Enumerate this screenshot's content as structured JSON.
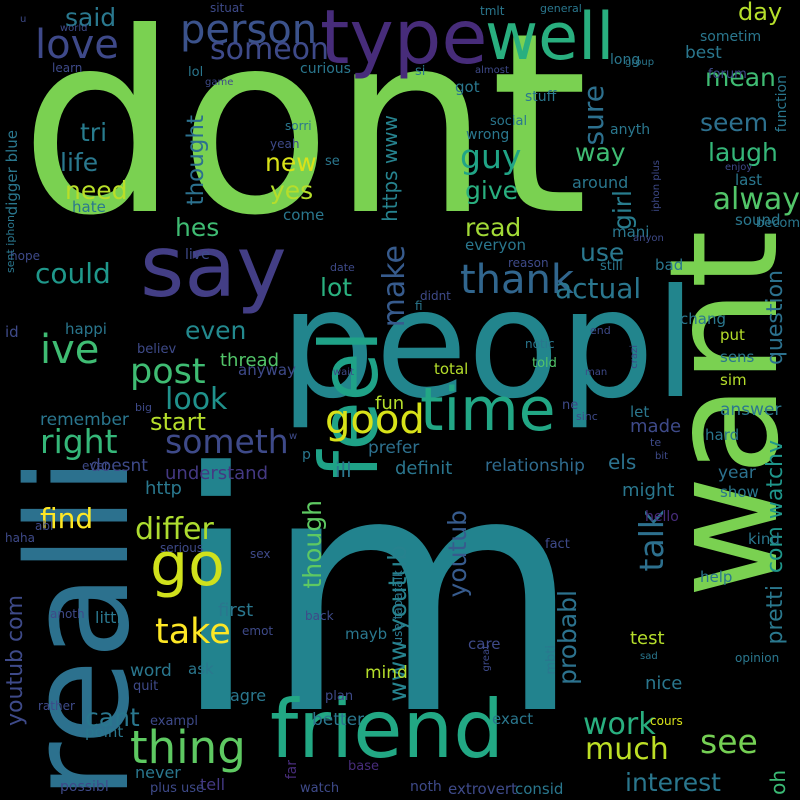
{
  "background": "#000000",
  "words": [
    {
      "text": "dont",
      "color": "#7ad151"
    },
    {
      "text": "im",
      "color": "#22838e"
    },
    {
      "text": "peopl",
      "color": "#22858d"
    },
    {
      "text": "want",
      "color": "#7ad151"
    },
    {
      "text": "realli",
      "color": "#2c718e"
    },
    {
      "text": "friend",
      "color": "#22a884"
    },
    {
      "text": "say",
      "color": "#433e85"
    },
    {
      "text": "feel",
      "color": "#1fa287"
    },
    {
      "text": "type",
      "color": "#472c7a"
    },
    {
      "text": "well",
      "color": "#29af7f"
    },
    {
      "text": "go",
      "color": "#d0e11c"
    },
    {
      "text": "time",
      "color": "#22a785"
    },
    {
      "text": "thing",
      "color": "#5ec962"
    },
    {
      "text": "person",
      "color": "#3b528b"
    },
    {
      "text": "thank",
      "color": "#31668e"
    },
    {
      "text": "love",
      "color": "#3e4989"
    },
    {
      "text": "ive",
      "color": "#3fbc73"
    },
    {
      "text": "post",
      "color": "#3fbc73"
    },
    {
      "text": "good",
      "color": "#d8e219"
    },
    {
      "text": "someth",
      "color": "#3e4a89"
    },
    {
      "text": "look",
      "color": "#20928c"
    },
    {
      "text": "right",
      "color": "#35b779"
    },
    {
      "text": "see",
      "color": "#75d054"
    },
    {
      "text": "much",
      "color": "#bddf26"
    },
    {
      "text": "actual",
      "color": "#2a768e"
    },
    {
      "text": "take",
      "color": "#fde725"
    },
    {
      "text": "make",
      "color": "#375b8d"
    },
    {
      "text": "work",
      "color": "#29af7f"
    },
    {
      "text": "guy",
      "color": "#20a486"
    },
    {
      "text": "differ",
      "color": "#addc30"
    },
    {
      "text": "find",
      "color": "#fde725"
    },
    {
      "text": "someon",
      "color": "#3e4a89"
    },
    {
      "text": "said",
      "color": "#2a788e"
    },
    {
      "text": "could",
      "color": "#1f988b"
    },
    {
      "text": "lot",
      "color": "#2ab07f"
    },
    {
      "text": "talk",
      "color": "#2d708e"
    },
    {
      "text": "interest",
      "color": "#2a778e"
    },
    {
      "text": "life",
      "color": "#2a788e"
    },
    {
      "text": "seem",
      "color": "#2d708e"
    },
    {
      "text": "laugh",
      "color": "#35b779"
    },
    {
      "text": "alway",
      "color": "#52c569"
    },
    {
      "text": "mean",
      "color": "#3fbc73"
    },
    {
      "text": "day",
      "color": "#b5de2b"
    },
    {
      "text": "way",
      "color": "#3fbc73"
    },
    {
      "text": "read",
      "color": "#a2da37"
    },
    {
      "text": "girl",
      "color": "#287d8e"
    },
    {
      "text": "give",
      "color": "#29af7f"
    },
    {
      "text": "use",
      "color": "#2a788e"
    },
    {
      "text": "need",
      "color": "#b8de29"
    },
    {
      "text": "new",
      "color": "#d8e219"
    },
    {
      "text": "yes",
      "color": "#b5de2b"
    },
    {
      "text": "hes",
      "color": "#3fbc73"
    },
    {
      "text": "tri",
      "color": "#287c8e"
    },
    {
      "text": "thought",
      "color": "#2c718e"
    },
    {
      "text": "sure",
      "color": "#2d708e"
    },
    {
      "text": "pretti",
      "color": "#2a788e"
    },
    {
      "text": "youtub",
      "color": "#375b8d"
    },
    {
      "text": "www youtub",
      "color": "#26828e"
    },
    {
      "text": "youtub com",
      "color": "#3e4a89"
    },
    {
      "text": "com watchv",
      "color": "#1f968b"
    },
    {
      "text": "even",
      "color": "#23898e"
    },
    {
      "text": "question",
      "color": "#2c718e"
    },
    {
      "text": "probabl",
      "color": "#2c728e"
    },
    {
      "text": "though",
      "color": "#5ec962"
    },
    {
      "text": "start",
      "color": "#b5de2b"
    },
    {
      "text": "cant",
      "color": "#2a778e"
    },
    {
      "text": "https www",
      "color": "#26828e"
    },
    {
      "text": "oh",
      "color": "#3bbb75"
    },
    {
      "text": "ill",
      "color": "#2a778e"
    },
    {
      "text": "definit",
      "color": "#2a768e"
    },
    {
      "text": "relationship",
      "color": "#2f6b8e"
    },
    {
      "text": "understand",
      "color": "#443983"
    },
    {
      "text": "thread",
      "color": "#52c569"
    },
    {
      "text": "remember",
      "color": "#2a768e"
    },
    {
      "text": "doesnt",
      "color": "#3e4a89"
    },
    {
      "text": "http",
      "color": "#2a788e"
    },
    {
      "text": "prefer",
      "color": "#2d708e"
    },
    {
      "text": "fun",
      "color": "#b5de2b"
    },
    {
      "text": "answer",
      "color": "#2a788e"
    },
    {
      "text": "made",
      "color": "#3e4a89"
    },
    {
      "text": "els",
      "color": "#2c728e"
    },
    {
      "text": "might",
      "color": "#2a778e"
    },
    {
      "text": "show",
      "color": "#2a778e"
    },
    {
      "text": "year",
      "color": "#2c718e"
    },
    {
      "text": "kind",
      "color": "#2a778e"
    },
    {
      "text": "test",
      "color": "#b5de2b"
    },
    {
      "text": "nice",
      "color": "#2a778e"
    },
    {
      "text": "better",
      "color": "#2a778e"
    },
    {
      "text": "mind",
      "color": "#b5de2b"
    },
    {
      "text": "mayb",
      "color": "#2a778e"
    },
    {
      "text": "word",
      "color": "#2a778e"
    },
    {
      "text": "first",
      "color": "#2a778e"
    },
    {
      "text": "littl",
      "color": "#2a778e"
    },
    {
      "text": "ask",
      "color": "#2a778e"
    },
    {
      "text": "agre",
      "color": "#2a778e"
    },
    {
      "text": "point",
      "color": "#2a778e"
    },
    {
      "text": "never",
      "color": "#2a778e"
    },
    {
      "text": "tell",
      "color": "#443983"
    },
    {
      "text": "happi",
      "color": "#2a778e"
    },
    {
      "text": "believ",
      "color": "#3e4a89"
    },
    {
      "text": "anyway",
      "color": "#3e4a89"
    },
    {
      "text": "total",
      "color": "#b5de2b"
    },
    {
      "text": "told",
      "color": "#52c569"
    },
    {
      "text": "sens",
      "color": "#2a778e"
    },
    {
      "text": "sim",
      "color": "#b5de2b"
    },
    {
      "text": "chang",
      "color": "#2a778e"
    },
    {
      "text": "put",
      "color": "#b5de2b"
    },
    {
      "text": "let",
      "color": "#2a778e"
    },
    {
      "text": "hard",
      "color": "#2a778e"
    },
    {
      "text": "help",
      "color": "#2a778e"
    },
    {
      "text": "opinion",
      "color": "#2a778e"
    },
    {
      "text": "cours",
      "color": "#d8e219"
    },
    {
      "text": "exact",
      "color": "#2a778e"
    },
    {
      "text": "consid",
      "color": "#2a778e"
    },
    {
      "text": "noth",
      "color": "#3e4a89"
    },
    {
      "text": "extrovert",
      "color": "#3e4a89"
    },
    {
      "text": "watch",
      "color": "#3e4a89"
    },
    {
      "text": "base",
      "color": "#472c7a"
    },
    {
      "text": "far",
      "color": "#472c7a"
    },
    {
      "text": "plus use",
      "color": "#3e4a89"
    },
    {
      "text": "possibl",
      "color": "#3e4a89"
    },
    {
      "text": "rather",
      "color": "#3e4a89"
    },
    {
      "text": "exampl",
      "color": "#3e4a89"
    },
    {
      "text": "quit",
      "color": "#3e4a89"
    },
    {
      "text": "care",
      "color": "#3e4a89"
    },
    {
      "text": "plan",
      "color": "#3e4a89"
    },
    {
      "text": "serious",
      "color": "#3e4a89"
    },
    {
      "text": "sex",
      "color": "#3e4a89"
    },
    {
      "text": "emot",
      "color": "#3e4a89"
    },
    {
      "text": "back",
      "color": "#3e4a89"
    },
    {
      "text": "fact",
      "color": "#3e4a89"
    },
    {
      "text": "hello",
      "color": "#472c7a"
    },
    {
      "text": "anoth",
      "color": "#3e4a89"
    },
    {
      "text": "abl",
      "color": "#3e4a89"
    },
    {
      "text": "ever",
      "color": "#3e4a89"
    },
    {
      "text": "haha",
      "color": "#3e4a89"
    },
    {
      "text": "big",
      "color": "#3e4a89"
    },
    {
      "text": "id",
      "color": "#3e4a89"
    },
    {
      "text": "hope",
      "color": "#3e4a89"
    },
    {
      "text": "live",
      "color": "#3e4a89"
    },
    {
      "text": "date",
      "color": "#3e4a89"
    },
    {
      "text": "didnt",
      "color": "#3e4a89"
    },
    {
      "text": "reason",
      "color": "#3e4a89"
    },
    {
      "text": "everyon",
      "color": "#2a778e"
    },
    {
      "text": "still",
      "color": "#2a778e"
    },
    {
      "text": "bad",
      "color": "#2a778e"
    },
    {
      "text": "mani",
      "color": "#2a778e"
    },
    {
      "text": "sound",
      "color": "#2a778e"
    },
    {
      "text": "becom",
      "color": "#2a778e"
    },
    {
      "text": "anyon",
      "color": "#3e4a89"
    },
    {
      "text": "enjoy",
      "color": "#3e4a89"
    },
    {
      "text": "last",
      "color": "#2a778e"
    },
    {
      "text": "around",
      "color": "#2a778e"
    },
    {
      "text": "anyth",
      "color": "#2a778e"
    },
    {
      "text": "wrong",
      "color": "#2a778e"
    },
    {
      "text": "social",
      "color": "#2a778e"
    },
    {
      "text": "got",
      "color": "#2a778e"
    },
    {
      "text": "stuff",
      "color": "#2a778e"
    },
    {
      "text": "long",
      "color": "#2a778e"
    },
    {
      "text": "forum",
      "color": "#3e4a89"
    },
    {
      "text": "function",
      "color": "#2a778e"
    },
    {
      "text": "best",
      "color": "#2a778e"
    },
    {
      "text": "sometim",
      "color": "#2a778e"
    },
    {
      "text": "group",
      "color": "#2a778e"
    },
    {
      "text": "general",
      "color": "#2a778e"
    },
    {
      "text": "tmlt",
      "color": "#2a778e"
    },
    {
      "text": "situat",
      "color": "#3e4a89"
    },
    {
      "text": "world",
      "color": "#3e4a89"
    },
    {
      "text": "u",
      "color": "#3e4a89"
    },
    {
      "text": "learn",
      "color": "#3e4a89"
    },
    {
      "text": "curious",
      "color": "#2a778e"
    },
    {
      "text": "lol",
      "color": "#2a778e"
    },
    {
      "text": "game",
      "color": "#3e4a89"
    },
    {
      "text": "si",
      "color": "#2a778e"
    },
    {
      "text": "almost",
      "color": "#3e4a89"
    },
    {
      "text": "sorri",
      "color": "#2a778e"
    },
    {
      "text": "yeah",
      "color": "#3e4a89"
    },
    {
      "text": "se",
      "color": "#2a778e"
    },
    {
      "text": "come",
      "color": "#2a778e"
    },
    {
      "text": "hate",
      "color": "#2a778e"
    },
    {
      "text": "digger blue",
      "color": "#2a778e"
    },
    {
      "text": "sent iphon",
      "color": "#2a778e"
    },
    {
      "text": "iphon plus",
      "color": "#3e4a89"
    },
    {
      "text": "notic",
      "color": "#2a778e"
    },
    {
      "text": "end",
      "color": "#3e4a89"
    },
    {
      "text": "crazi",
      "color": "#3e4a89"
    },
    {
      "text": "man",
      "color": "#3e4a89"
    },
    {
      "text": "wait",
      "color": "#3e4a89"
    },
    {
      "text": "fi",
      "color": "#2a778e"
    },
    {
      "text": "ne",
      "color": "#3e4a89"
    },
    {
      "text": "sinc",
      "color": "#3e4a89"
    },
    {
      "text": "te",
      "color": "#3e4a89"
    },
    {
      "text": "bit",
      "color": "#3e4a89"
    },
    {
      "text": "use tapatalk",
      "color": "#2a778e"
    },
    {
      "text": "mbti",
      "color": "#2a778e"
    },
    {
      "text": "great",
      "color": "#3e4a89"
    },
    {
      "text": "sad",
      "color": "#2a778e"
    },
    {
      "text": "p",
      "color": "#2a778e"
    },
    {
      "text": "w",
      "color": "#3e4a89"
    }
  ]
}
